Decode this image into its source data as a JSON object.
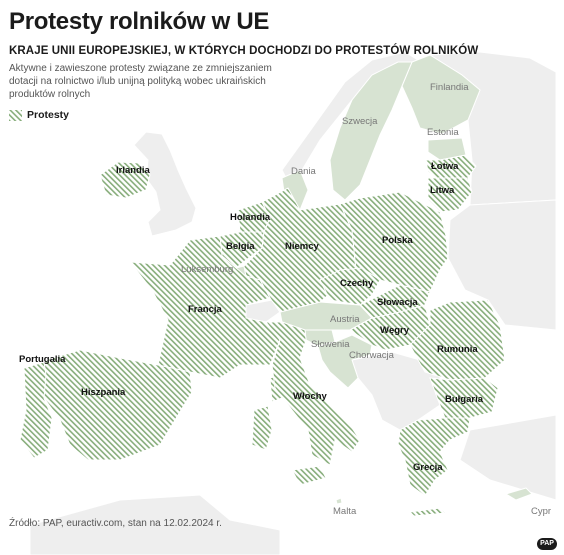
{
  "header": {
    "title": "Protesty rolników w UE",
    "subtitle": "KRAJE UNII EUROPEJSKIEJ, W KTÓRYCH DOCHODZI DO PROTESTÓW ROLNIKÓW",
    "description": "Aktywne i zawieszone protesty związane ze zmniejszaniem dotacji na rolnictwo i/lub unijną polityką wobec ukraińskich produktów rolnych"
  },
  "legend": {
    "protest_label": "Protesty"
  },
  "labels": {
    "protest": {
      "irlandia": "Irlandia",
      "holandia": "Holandia",
      "belgia": "Belgia",
      "niemcy": "Niemcy",
      "polska": "Polska",
      "lotwa": "Łotwa",
      "litwa": "Litwa",
      "francja": "Francja",
      "czechy": "Czechy",
      "slowacja": "Słowacja",
      "wegry": "Węgry",
      "rumunia": "Rumunia",
      "portugalia": "Portugalia",
      "hiszpania": "Hiszpania",
      "wlochy": "Włochy",
      "bulgaria": "Bułgaria",
      "grecja": "Grecja"
    },
    "other": {
      "finlandia": "Finlandia",
      "szwecja": "Szwecja",
      "estonia": "Estonia",
      "dania": "Dania",
      "luksemburg": "Luksemburg",
      "austria": "Austria",
      "slowenia": "Słowenia",
      "chorwacja": "Chorwacja",
      "malta": "Malta",
      "cypr": "Cypr"
    }
  },
  "footer": {
    "source": "Źródło: PAP, euractiv.com, stan na 12.02.2024 r.",
    "logo_text": "PAP"
  },
  "colors": {
    "protest_stripe": "#87ad7b",
    "protest_fill": "#ffffff",
    "other_eu": "#d7e3d2",
    "non_eu": "#eeeeee",
    "border": "#ffffff"
  }
}
